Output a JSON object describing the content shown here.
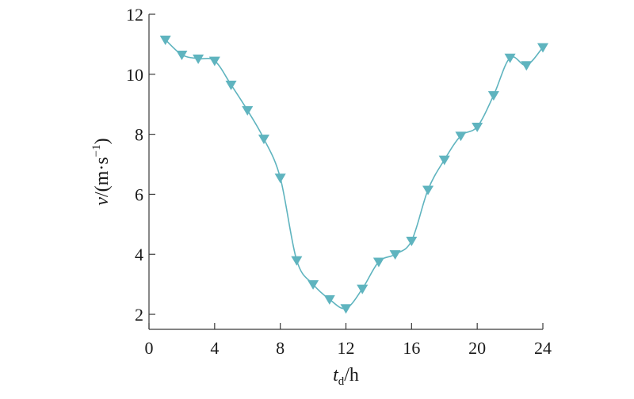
{
  "chart_data": {
    "type": "line",
    "xlabel": {
      "main": "t",
      "sub": "d",
      "rest": "/h"
    },
    "ylabel": {
      "main": "v",
      "rest": "/(m·s",
      "sup": "−1",
      "close": ")"
    },
    "xlim": [
      0,
      24
    ],
    "ylim": [
      1.5,
      12
    ],
    "xticks": [
      0,
      4,
      8,
      12,
      16,
      20,
      24
    ],
    "yticks": [
      2,
      4,
      6,
      8,
      10,
      12
    ],
    "grid": false,
    "legend": "none",
    "series": [
      {
        "color": "#5fb4bf",
        "marker": "triangle-down",
        "smooth": true,
        "x": [
          1,
          2,
          3,
          4,
          5,
          6,
          7,
          8,
          9,
          10,
          11,
          12,
          13,
          14,
          15,
          16,
          17,
          18,
          19,
          20,
          21,
          22,
          23,
          24
        ],
        "y": [
          11.15,
          10.65,
          10.52,
          10.45,
          9.65,
          8.8,
          7.85,
          6.55,
          3.8,
          3.0,
          2.5,
          2.2,
          2.85,
          3.75,
          4.0,
          4.45,
          6.15,
          7.15,
          7.95,
          8.25,
          9.3,
          10.55,
          10.3,
          10.9
        ]
      }
    ]
  }
}
